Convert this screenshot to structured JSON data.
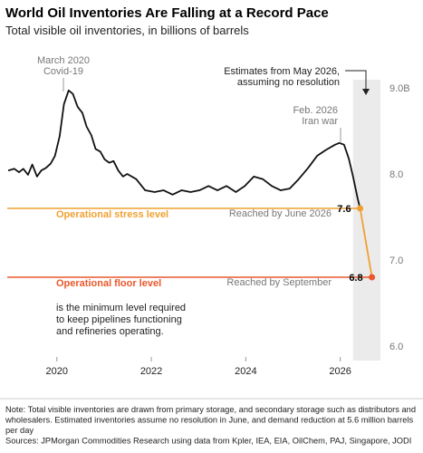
{
  "chart_data": {
    "type": "line",
    "title": "World Oil Inventories Are Falling at a Record Pace",
    "subtitle": "Total visible oil inventories, in billions of barrels",
    "xlim": [
      2018.95,
      2026.85
    ],
    "xticks": [
      2020,
      2022,
      2024,
      2026
    ],
    "ylim": [
      6,
      9
    ],
    "yticks": [
      {
        "value": 6,
        "label": "6.0"
      },
      {
        "value": 7,
        "label": "7.0"
      },
      {
        "value": 8,
        "label": "8.0"
      },
      {
        "value": 9,
        "label": "9.0B"
      }
    ],
    "series": [
      {
        "name": "Total visible oil inventories",
        "color": "#111111",
        "x": [
          2018.97,
          2019.1,
          2019.2,
          2019.29,
          2019.39,
          2019.48,
          2019.58,
          2019.67,
          2019.77,
          2019.87,
          2019.96,
          2020.06,
          2020.15,
          2020.25,
          2020.34,
          2020.44,
          2020.54,
          2020.63,
          2020.73,
          2020.82,
          2020.92,
          2021.01,
          2021.11,
          2021.2,
          2021.3,
          2021.4,
          2021.49,
          2021.68,
          2021.87,
          2022.07,
          2022.26,
          2022.45,
          2022.64,
          2022.83,
          2023.02,
          2023.21,
          2023.4,
          2023.59,
          2023.79,
          2023.98,
          2024.17,
          2024.36,
          2024.55,
          2024.74,
          2024.93,
          2025.12,
          2025.32,
          2025.51,
          2025.7,
          2025.89,
          2025.98,
          2026.08,
          2026.18,
          2026.27,
          2026.37,
          2026.42
        ],
        "values": [
          8.04,
          8.06,
          8.02,
          8.06,
          7.99,
          8.11,
          7.97,
          8.04,
          8.07,
          8.12,
          8.21,
          8.44,
          8.81,
          8.97,
          8.93,
          8.78,
          8.71,
          8.55,
          8.45,
          8.29,
          8.26,
          8.17,
          8.13,
          8.15,
          8.04,
          7.97,
          8.0,
          7.94,
          7.81,
          7.79,
          7.81,
          7.76,
          7.81,
          7.79,
          7.81,
          7.86,
          7.81,
          7.86,
          7.79,
          7.86,
          7.97,
          7.94,
          7.86,
          7.81,
          7.83,
          7.94,
          8.07,
          8.21,
          8.28,
          8.34,
          8.36,
          8.34,
          8.18,
          7.97,
          7.71,
          7.6
        ]
      },
      {
        "name": "Estimates",
        "color": "#f0a030",
        "point_colors": [
          "#f0a030",
          "#e8582b"
        ],
        "x": [
          2026.42,
          2026.67
        ],
        "values": [
          7.6,
          6.8
        ]
      }
    ],
    "estimate_region": [
      2026.27,
      2026.85
    ],
    "reference_lines": [
      {
        "value": 7.6,
        "label": "Operational stress level",
        "note": "Reached by June 2026",
        "color": "#f0a030",
        "description": []
      },
      {
        "value": 6.8,
        "label": "Operational floor level",
        "note": "Reached by September",
        "color": "#e8582b",
        "description": [
          "is the minimum level required",
          "to keep pipelines functioning",
          "and refineries operating."
        ]
      }
    ],
    "annotations": [
      {
        "lines": [
          "March 2020",
          "Covid-19"
        ]
      },
      {
        "lines": [
          "Feb. 2026",
          "Iran war"
        ]
      },
      {
        "lines": [
          "Estimates from May 2026,",
          "assuming no resolution"
        ]
      }
    ],
    "notes": [
      "Note: Total visible inventories are drawn from primary storage, and secondary storage such as distributors and",
      "wholesalers. Estimated inventories assume no resolution in June, and demand reduction at 5.6 million barrels",
      "per day",
      "Sources: JPMorgan Commodities Research using data from Kpler, IEA, EIA, OilChem, PAJ, Singapore, JODI"
    ]
  }
}
